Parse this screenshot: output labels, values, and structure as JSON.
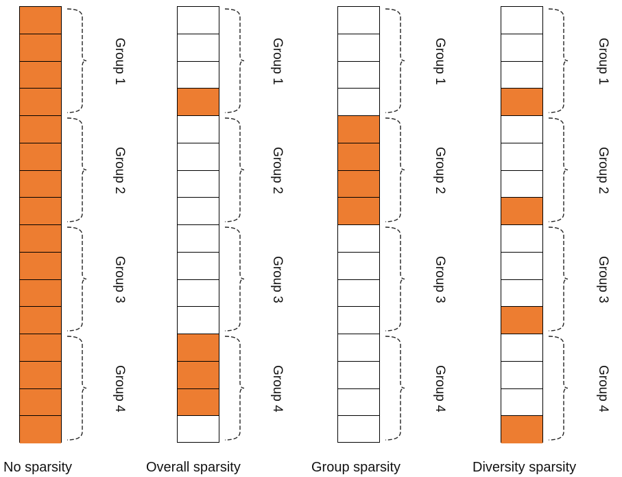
{
  "colors": {
    "filled": "#ed7d31",
    "empty": "#ffffff",
    "stroke": "#000000"
  },
  "columns": [
    {
      "title": "No sparsity",
      "filled": [
        1,
        1,
        1,
        1,
        1,
        1,
        1,
        1,
        1,
        1,
        1,
        1,
        1,
        1,
        1,
        1
      ],
      "groups": [
        "Group 1",
        "Group 2",
        "Group 3",
        "Group 4"
      ]
    },
    {
      "title": "Overall sparsity",
      "filled": [
        0,
        0,
        0,
        1,
        0,
        0,
        0,
        0,
        0,
        0,
        0,
        0,
        1,
        1,
        1,
        0
      ],
      "groups": [
        "Group 1",
        "Group 2",
        "Group 3",
        "Group 4"
      ]
    },
    {
      "title": "Group sparsity",
      "filled": [
        0,
        0,
        0,
        0,
        1,
        1,
        1,
        1,
        0,
        0,
        0,
        0,
        0,
        0,
        0,
        0
      ],
      "groups": [
        "Group 1",
        "Group 2",
        "Group 3",
        "Group 4"
      ]
    },
    {
      "title": "Diversity sparsity",
      "filled": [
        0,
        0,
        0,
        1,
        0,
        0,
        0,
        1,
        0,
        0,
        0,
        1,
        0,
        0,
        0,
        1
      ],
      "groups": [
        "Group 1",
        "Group 2",
        "Group 3",
        "Group 4"
      ]
    }
  ]
}
